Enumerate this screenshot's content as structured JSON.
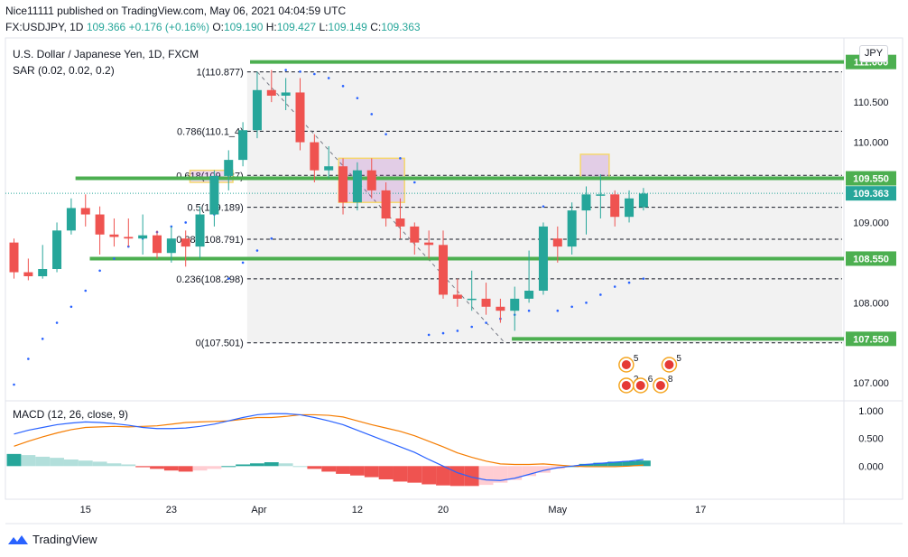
{
  "header": {
    "line1": "Nice11111 published on TradingView.com, May 06, 2021 04:04:59 UTC",
    "symbol": "FX:USDJPY, 1D",
    "last": "109.366",
    "change": "+0.176 (+0.16%)",
    "o_label": "O:",
    "o": "109.190",
    "h_label": "H:",
    "h": "109.427",
    "l_label": "L:",
    "l": "109.149",
    "c_label": "C:",
    "c": "109.363"
  },
  "legend": {
    "title": "U.S. Dollar / Japanese Yen, 1D, FXCM",
    "sar": "SAR (0.02, 0.02, 0.2)",
    "macd": "MACD (12, 26, close, 9)"
  },
  "currency_button": "JPY",
  "footer": {
    "brand": "TradingView"
  },
  "colors": {
    "up": "#26a69a",
    "down": "#ef5350",
    "level": "#4caf50",
    "sar": "#2962ff",
    "macd": "#2962ff",
    "signal": "#f57c00"
  },
  "chart_data": {
    "type": "candlestick",
    "x_ticks": [
      {
        "label": "15",
        "i": 5
      },
      {
        "label": "23",
        "i": 11
      },
      {
        "label": "Apr",
        "i": 17
      },
      {
        "label": "12",
        "i": 24
      },
      {
        "label": "20",
        "i": 30
      },
      {
        "label": "May",
        "i": 38
      },
      {
        "label": "17",
        "i": 48
      }
    ],
    "y_ticks": [
      "107.000",
      "107.500",
      "108.000",
      "108.500",
      "109.000",
      "109.500",
      "110.000",
      "110.500"
    ],
    "y_range": [
      106.8,
      111.3
    ],
    "candles": [
      [
        108.75,
        108.38,
        108.8,
        108.3
      ],
      [
        108.38,
        108.33,
        108.55,
        108.28
      ],
      [
        108.33,
        108.42,
        108.72,
        108.3
      ],
      [
        108.42,
        108.9,
        109.0,
        108.38
      ],
      [
        108.9,
        109.18,
        109.3,
        108.85
      ],
      [
        109.18,
        109.1,
        109.35,
        108.95
      ],
      [
        109.1,
        108.85,
        109.2,
        108.6
      ],
      [
        108.85,
        108.82,
        109.05,
        108.7
      ],
      [
        108.82,
        108.8,
        109.05,
        108.7
      ],
      [
        108.8,
        108.84,
        109.1,
        108.6
      ],
      [
        108.84,
        108.62,
        108.9,
        108.55
      ],
      [
        108.62,
        108.8,
        108.95,
        108.5
      ],
      [
        108.8,
        108.7,
        108.9,
        108.45
      ],
      [
        108.7,
        109.1,
        109.2,
        108.55
      ],
      [
        109.1,
        109.58,
        109.65,
        108.95
      ],
      [
        109.58,
        109.78,
        109.9,
        109.4
      ],
      [
        109.78,
        110.15,
        110.25,
        109.7
      ],
      [
        110.15,
        110.65,
        110.88,
        110.05
      ],
      [
        110.65,
        110.58,
        110.9,
        110.5
      ],
      [
        110.58,
        110.62,
        110.8,
        110.4
      ],
      [
        110.62,
        110.0,
        110.8,
        109.9
      ],
      [
        110.0,
        109.65,
        110.1,
        109.5
      ],
      [
        109.65,
        109.7,
        109.95,
        109.55
      ],
      [
        109.7,
        109.25,
        109.8,
        109.1
      ],
      [
        109.25,
        109.65,
        109.75,
        109.15
      ],
      [
        109.65,
        109.4,
        109.8,
        109.3
      ],
      [
        109.4,
        109.05,
        109.5,
        108.95
      ],
      [
        109.05,
        108.95,
        109.3,
        108.8
      ],
      [
        108.95,
        108.75,
        109.0,
        108.6
      ],
      [
        108.75,
        108.72,
        108.9,
        108.55
      ],
      [
        108.72,
        108.1,
        108.9,
        108.05
      ],
      [
        108.1,
        108.05,
        108.3,
        107.95
      ],
      [
        108.05,
        108.05,
        108.4,
        107.9
      ],
      [
        108.05,
        107.95,
        108.25,
        107.85
      ],
      [
        107.95,
        107.9,
        108.05,
        107.75
      ],
      [
        107.9,
        108.05,
        108.2,
        107.65
      ],
      [
        108.05,
        108.15,
        108.65,
        108.0
      ],
      [
        108.15,
        108.95,
        109.0,
        108.1
      ],
      [
        108.8,
        108.7,
        108.95,
        108.5
      ],
      [
        108.7,
        109.15,
        109.25,
        108.6
      ],
      [
        109.15,
        109.35,
        109.45,
        108.85
      ],
      [
        109.35,
        109.35,
        109.6,
        109.05
      ],
      [
        109.35,
        109.07,
        109.4,
        108.95
      ],
      [
        109.07,
        109.3,
        109.4,
        109.0
      ],
      [
        109.19,
        109.36,
        109.43,
        109.15
      ]
    ],
    "sar": [
      106.98,
      107.3,
      107.55,
      107.75,
      107.95,
      108.15,
      108.4,
      108.55,
      108.7,
      108.8,
      108.88,
      108.95,
      109.0,
      109.05,
      109.1,
      108.3,
      108.5,
      108.65,
      108.8,
      110.9,
      110.88,
      110.85,
      110.8,
      110.7,
      110.55,
      110.35,
      110.1,
      109.8,
      109.5,
      107.6,
      107.62,
      107.65,
      107.7,
      107.75,
      107.8,
      107.85,
      107.9,
      109.2,
      107.9,
      107.95,
      108.0,
      108.1,
      108.2,
      108.25,
      108.3
    ],
    "fibs": [
      {
        "label": "1(110.877)",
        "value": 110.877
      },
      {
        "label": "0.786(110.1_4)",
        "value": 110.137
      },
      {
        "label": "0.618(109.587)",
        "value": 109.587
      },
      {
        "label": "0.5(109.189)",
        "value": 109.189
      },
      {
        "label": "0.382(108.791)",
        "value": 108.791
      },
      {
        "label": "0.236(108.298)",
        "value": 108.298
      },
      {
        "label": "0(107.501)",
        "value": 107.501
      }
    ],
    "levels": [
      {
        "label": "111.000",
        "value": 111.0
      },
      {
        "label": "109.550",
        "value": 109.55
      },
      {
        "label": "108.550",
        "value": 108.55
      },
      {
        "label": "107.550",
        "value": 107.55
      }
    ],
    "current_price": {
      "label": "109.363",
      "value": 109.363
    },
    "macd_ticks": [
      "1.000",
      "0.500",
      "0.000"
    ],
    "macd_range": [
      -0.6,
      1.15
    ],
    "macd_hist": [
      0.22,
      0.2,
      0.17,
      0.15,
      0.12,
      0.1,
      0.08,
      0.05,
      0.03,
      -0.02,
      -0.05,
      -0.08,
      -0.1,
      -0.08,
      -0.05,
      0.0,
      0.03,
      0.05,
      0.07,
      0.05,
      0.0,
      -0.05,
      -0.1,
      -0.14,
      -0.17,
      -0.2,
      -0.24,
      -0.28,
      -0.3,
      -0.33,
      -0.35,
      -0.36,
      -0.36,
      -0.34,
      -0.3,
      -0.25,
      -0.18,
      -0.12,
      -0.05,
      0.0,
      0.04,
      0.06,
      0.08,
      0.09,
      0.1
    ],
    "macd_line": [
      0.58,
      0.65,
      0.7,
      0.75,
      0.78,
      0.8,
      0.79,
      0.77,
      0.74,
      0.7,
      0.68,
      0.68,
      0.69,
      0.72,
      0.76,
      0.82,
      0.88,
      0.93,
      0.95,
      0.95,
      0.93,
      0.88,
      0.82,
      0.75,
      0.65,
      0.55,
      0.45,
      0.35,
      0.25,
      0.12,
      0.0,
      -0.12,
      -0.2,
      -0.25,
      -0.26,
      -0.22,
      -0.15,
      -0.08,
      -0.03,
      0.0,
      0.03,
      0.05,
      0.07,
      0.09,
      0.12
    ],
    "signal_line": [
      0.36,
      0.45,
      0.53,
      0.6,
      0.66,
      0.7,
      0.71,
      0.72,
      0.71,
      0.72,
      0.73,
      0.76,
      0.79,
      0.8,
      0.81,
      0.82,
      0.85,
      0.88,
      0.88,
      0.9,
      0.93,
      0.93,
      0.92,
      0.89,
      0.82,
      0.75,
      0.69,
      0.63,
      0.55,
      0.45,
      0.35,
      0.24,
      0.16,
      0.09,
      0.04,
      0.03,
      0.03,
      0.04,
      0.02,
      0.0,
      -0.01,
      -0.01,
      -0.01,
      0.0,
      0.02
    ],
    "events": {
      "a": "5",
      "b": "5",
      "c": "2",
      "d": "6",
      "e": "8"
    }
  }
}
